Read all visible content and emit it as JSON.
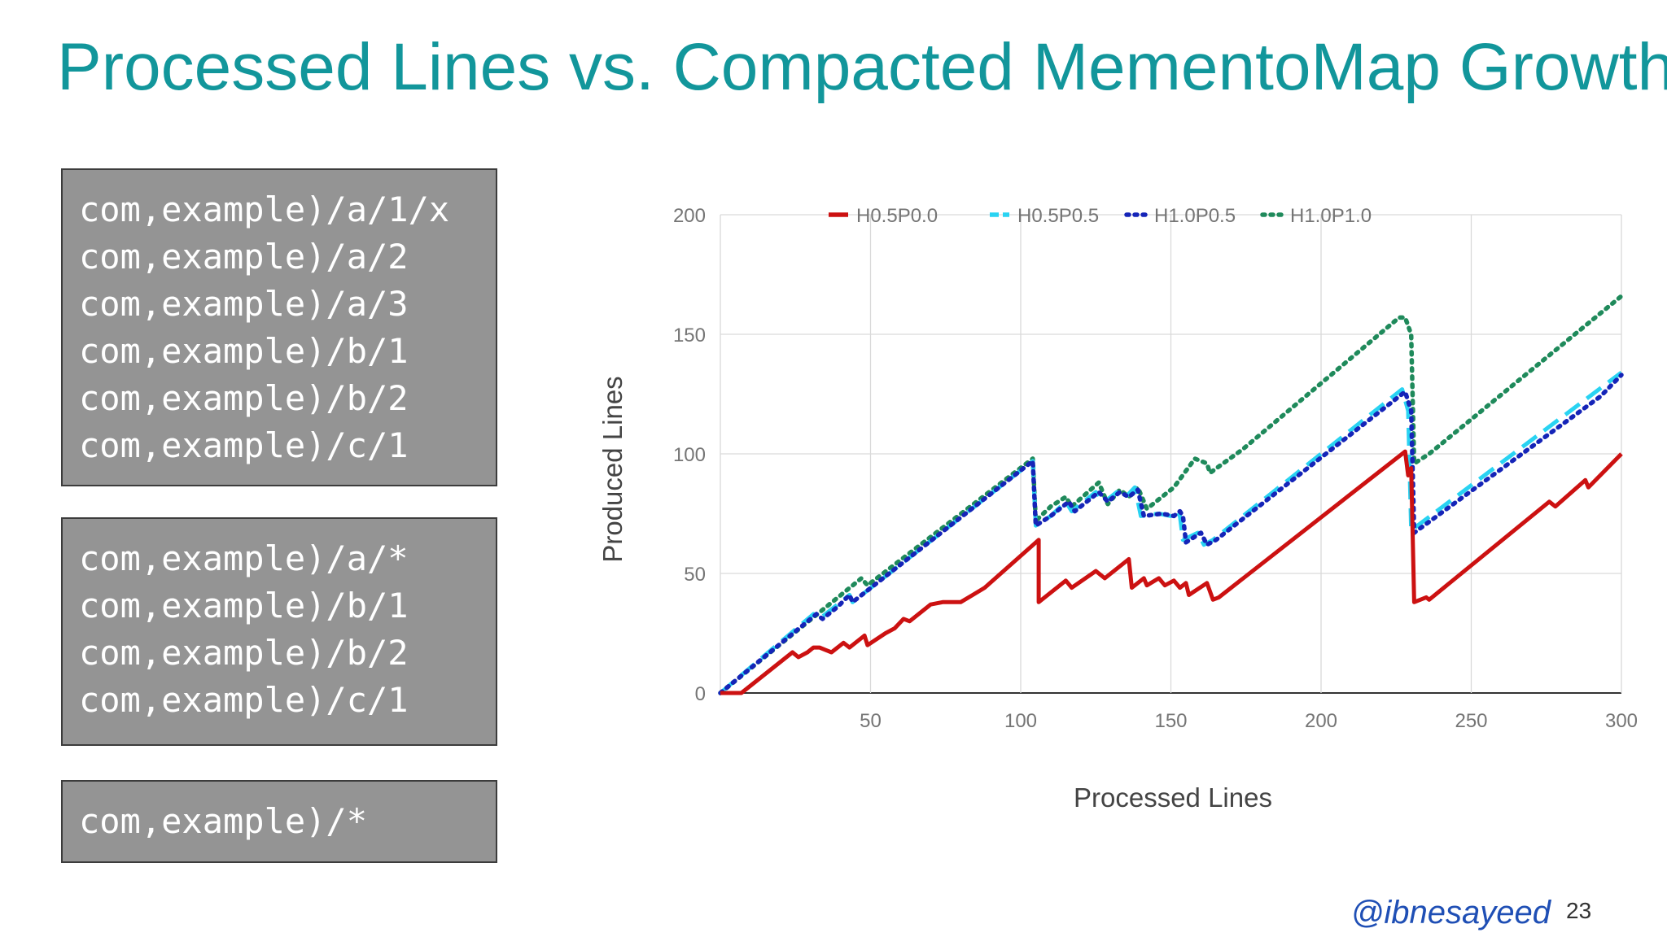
{
  "slide": {
    "title": "Processed Lines vs. Compacted MementoMap Growth",
    "handle": "@ibnesayeed",
    "page_number": "23"
  },
  "code_blocks": [
    {
      "lines": [
        "com,example)/a/1/x",
        "com,example)/a/2",
        "com,example)/a/3",
        "com,example)/b/1",
        "com,example)/b/2",
        "com,example)/c/1"
      ]
    },
    {
      "lines": [
        "com,example)/a/*",
        "com,example)/b/1",
        "com,example)/b/2",
        "com,example)/c/1"
      ]
    },
    {
      "lines": [
        "com,example)/*"
      ]
    }
  ],
  "colors": {
    "title": "#12969b",
    "code_box_bg": "#949494",
    "handle": "#1f4fb5"
  },
  "chart_data": {
    "type": "line",
    "xlabel": "Processed Lines",
    "ylabel": "Produced Lines",
    "xlim": [
      0,
      300
    ],
    "ylim": [
      0,
      200
    ],
    "x_ticks": [
      50,
      100,
      150,
      200,
      250,
      300
    ],
    "y_ticks": [
      0,
      50,
      100,
      150,
      200
    ],
    "grid": true,
    "legend_position": "top",
    "series": [
      {
        "name": "H0.5P0.0",
        "color": "#cc1111",
        "style": "solid",
        "points": [
          [
            0,
            0
          ],
          [
            7,
            0
          ],
          [
            24,
            17
          ],
          [
            26,
            15
          ],
          [
            29,
            17
          ],
          [
            31,
            19
          ],
          [
            33,
            19
          ],
          [
            35,
            18
          ],
          [
            37,
            17
          ],
          [
            41,
            21
          ],
          [
            43,
            19
          ],
          [
            48,
            24
          ],
          [
            49,
            20
          ],
          [
            55,
            25
          ],
          [
            58,
            27
          ],
          [
            61,
            31
          ],
          [
            63,
            30
          ],
          [
            70,
            37
          ],
          [
            74,
            38
          ],
          [
            78,
            38
          ],
          [
            80,
            38
          ],
          [
            84,
            41
          ],
          [
            88,
            44
          ],
          [
            106,
            64
          ],
          [
            106,
            38
          ],
          [
            115,
            47
          ],
          [
            117,
            44
          ],
          [
            125,
            51
          ],
          [
            128,
            48
          ],
          [
            136,
            56
          ],
          [
            137,
            44
          ],
          [
            141,
            48
          ],
          [
            142,
            45
          ],
          [
            146,
            48
          ],
          [
            148,
            45
          ],
          [
            151,
            47
          ],
          [
            153,
            44
          ],
          [
            155,
            46
          ],
          [
            156,
            41
          ],
          [
            162,
            46
          ],
          [
            164,
            39
          ],
          [
            166,
            40
          ],
          [
            228,
            101
          ],
          [
            229,
            91
          ],
          [
            230,
            94
          ],
          [
            231,
            38
          ],
          [
            235,
            40
          ],
          [
            236,
            39
          ],
          [
            276,
            80
          ],
          [
            278,
            78
          ],
          [
            288,
            89
          ],
          [
            289,
            86
          ],
          [
            300,
            100
          ]
        ]
      },
      {
        "name": "H0.5P0.5",
        "color": "#29d3f2",
        "style": "dash",
        "points": [
          [
            0,
            0
          ],
          [
            31,
            33
          ],
          [
            33,
            31
          ],
          [
            38,
            36
          ],
          [
            43,
            41
          ],
          [
            44,
            38
          ],
          [
            104,
            97
          ],
          [
            105,
            70
          ],
          [
            110,
            74
          ],
          [
            115,
            80
          ],
          [
            117,
            76
          ],
          [
            125,
            84
          ],
          [
            128,
            80
          ],
          [
            132,
            84
          ],
          [
            135,
            82
          ],
          [
            138,
            86
          ],
          [
            140,
            74
          ],
          [
            146,
            75
          ],
          [
            150,
            74
          ],
          [
            152,
            76
          ],
          [
            153,
            74
          ],
          [
            154,
            64
          ],
          [
            159,
            67
          ],
          [
            161,
            62
          ],
          [
            164,
            64
          ],
          [
            227,
            127
          ],
          [
            229,
            118
          ],
          [
            230,
            68
          ],
          [
            300,
            134
          ]
        ]
      },
      {
        "name": "H1.0P0.5",
        "color": "#1524b8",
        "style": "dot",
        "points": [
          [
            0,
            0
          ],
          [
            32,
            33
          ],
          [
            34,
            31
          ],
          [
            39,
            36
          ],
          [
            43,
            41
          ],
          [
            44,
            38
          ],
          [
            104,
            97
          ],
          [
            105,
            70
          ],
          [
            110,
            74
          ],
          [
            116,
            80
          ],
          [
            118,
            76
          ],
          [
            126,
            84
          ],
          [
            129,
            80
          ],
          [
            133,
            84
          ],
          [
            136,
            82
          ],
          [
            139,
            85
          ],
          [
            141,
            74
          ],
          [
            147,
            75
          ],
          [
            151,
            74
          ],
          [
            153,
            76
          ],
          [
            154,
            74
          ],
          [
            155,
            63
          ],
          [
            160,
            67
          ],
          [
            162,
            62
          ],
          [
            165,
            64
          ],
          [
            228,
            126
          ],
          [
            230,
            118
          ],
          [
            231,
            67
          ],
          [
            293,
            124
          ],
          [
            300,
            133
          ]
        ]
      },
      {
        "name": "H1.0P1.0",
        "color": "#1f8a5b",
        "style": "dot",
        "points": [
          [
            0,
            0
          ],
          [
            47,
            48
          ],
          [
            49,
            45
          ],
          [
            104,
            98
          ],
          [
            105,
            72
          ],
          [
            110,
            78
          ],
          [
            115,
            82
          ],
          [
            117,
            78
          ],
          [
            126,
            88
          ],
          [
            129,
            79
          ],
          [
            133,
            85
          ],
          [
            136,
            82
          ],
          [
            139,
            86
          ],
          [
            142,
            77
          ],
          [
            148,
            83
          ],
          [
            151,
            86
          ],
          [
            158,
            98
          ],
          [
            162,
            96
          ],
          [
            163,
            92
          ],
          [
            174,
            102
          ],
          [
            226,
            157
          ],
          [
            228,
            157
          ],
          [
            230,
            150
          ],
          [
            231,
            96
          ],
          [
            236,
            100
          ],
          [
            300,
            166
          ]
        ]
      }
    ]
  }
}
